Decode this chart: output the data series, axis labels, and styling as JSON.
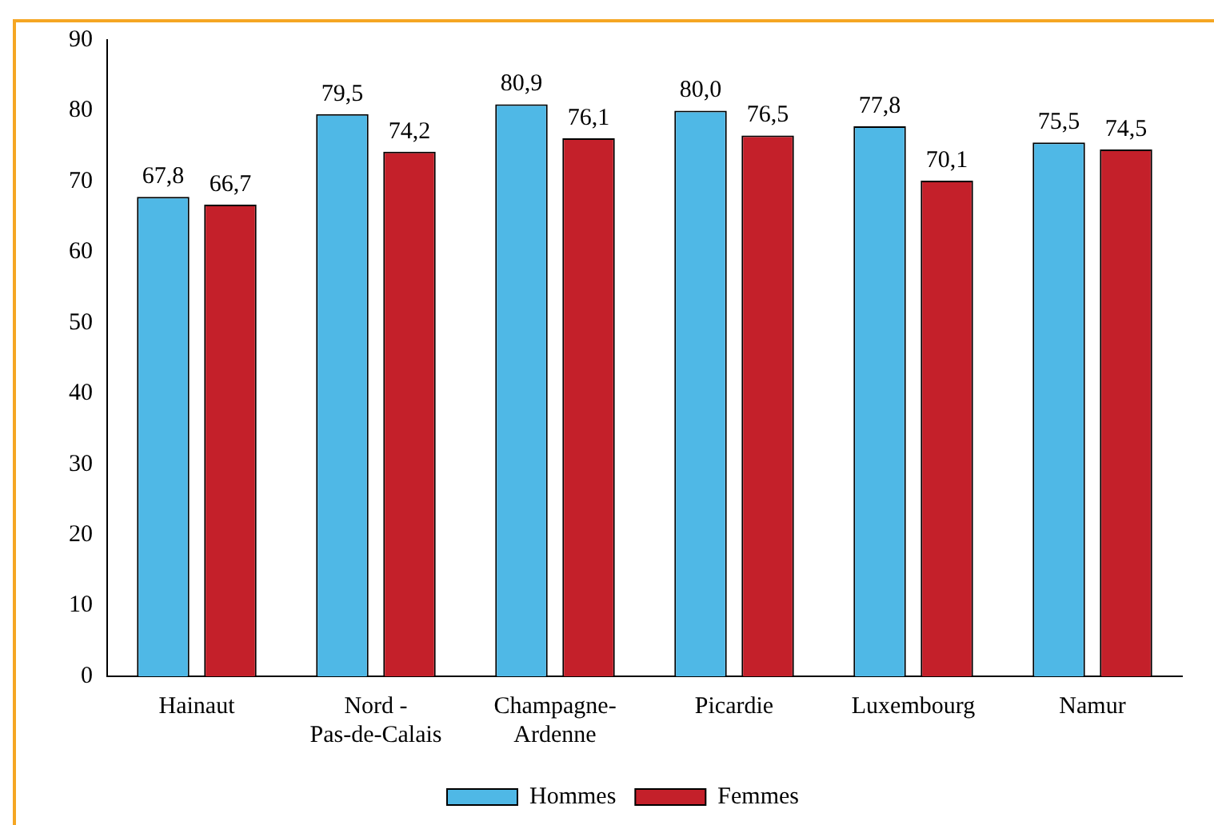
{
  "chart_data": {
    "type": "bar",
    "categories": [
      "Hainaut",
      "Nord -\nPas-de-Calais",
      "Champagne-\nArdenne",
      "Picardie",
      "Luxembourg",
      "Namur"
    ],
    "series": [
      {
        "name": "Hommes",
        "color": "#4fb8e6",
        "values": [
          67.8,
          79.5,
          80.9,
          80.0,
          77.8,
          75.5
        ],
        "value_labels": [
          "67,8",
          "79,5",
          "80,9",
          "80,0",
          "77,8",
          "75,5"
        ]
      },
      {
        "name": "Femmes",
        "color": "#c4202a",
        "values": [
          66.7,
          74.2,
          76.1,
          76.5,
          70.1,
          74.5
        ],
        "value_labels": [
          "66,7",
          "74,2",
          "76,1",
          "76,5",
          "70,1",
          "74,5"
        ]
      }
    ],
    "ylim": [
      0,
      90
    ],
    "yticks": [
      0,
      10,
      20,
      30,
      40,
      50,
      60,
      70,
      80,
      90
    ],
    "grid": false,
    "legend": "bottom"
  }
}
